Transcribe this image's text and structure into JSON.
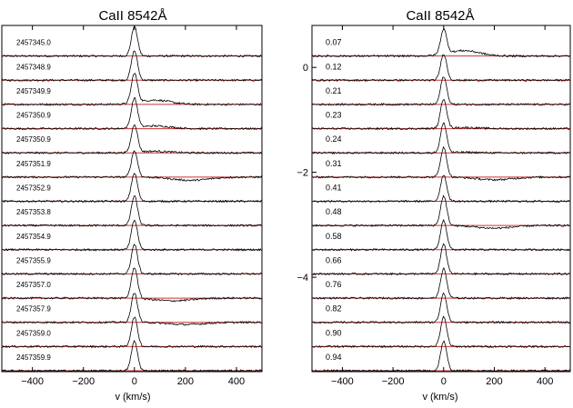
{
  "chart_data": [
    {
      "type": "line",
      "title": "CaII 8542Å",
      "xlabel": "v (km/s)",
      "ylabel": "",
      "xlim": [
        -520,
        500
      ],
      "xticks": [
        -400,
        -200,
        0,
        200,
        400
      ],
      "yticks": [],
      "grid": false,
      "legend": "none",
      "reference_line_color": "#cc3333",
      "spectrum_color": "#000000",
      "series": [
        {
          "label": "2457345.0",
          "peak": 0.95,
          "bump": 0.0,
          "absorb": 0.0,
          "absorb_center": 0
        },
        {
          "label": "2457348.9",
          "peak": 0.95,
          "bump": 0.0,
          "absorb": 0.0,
          "absorb_center": 0
        },
        {
          "label": "2457349.9",
          "peak": 0.95,
          "bump": 0.4,
          "absorb": 0.0,
          "absorb_center": 0
        },
        {
          "label": "2457350.9",
          "peak": 0.95,
          "bump": 0.25,
          "absorb": 0.0,
          "absorb_center": 0
        },
        {
          "label": "2457350.9",
          "peak": 0.9,
          "bump": 0.15,
          "absorb": 0.0,
          "absorb_center": 0
        },
        {
          "label": "2457351.9",
          "peak": 0.85,
          "bump": 0.0,
          "absorb": 0.3,
          "absorb_center": 220
        },
        {
          "label": "2457352.9",
          "peak": 0.9,
          "bump": 0.0,
          "absorb": 0.0,
          "absorb_center": 0
        },
        {
          "label": "2457353.8",
          "peak": 0.95,
          "bump": 0.0,
          "absorb": 0.0,
          "absorb_center": 0
        },
        {
          "label": "2457354.9",
          "peak": 0.95,
          "bump": 0.0,
          "absorb": 0.0,
          "absorb_center": 0
        },
        {
          "label": "2457355.9",
          "peak": 0.95,
          "bump": 0.0,
          "absorb": 0.0,
          "absorb_center": 0
        },
        {
          "label": "2457357.0",
          "peak": 1.0,
          "bump": 0.0,
          "absorb": 0.25,
          "absorb_center": 150
        },
        {
          "label": "2457357.9",
          "peak": 0.95,
          "bump": 0.0,
          "absorb": 0.2,
          "absorb_center": 200
        },
        {
          "label": "2457359.0",
          "peak": 0.95,
          "bump": 0.0,
          "absorb": 0.0,
          "absorb_center": 0
        },
        {
          "label": "2457359.9",
          "peak": 0.95,
          "bump": 0.0,
          "absorb": 0.0,
          "absorb_center": 0
        }
      ]
    },
    {
      "type": "line",
      "title": "CaII 8542Å",
      "xlabel": "v (km/s)",
      "ylabel": "",
      "xlim": [
        -520,
        500
      ],
      "ylim": [
        -5.8,
        0.8
      ],
      "xticks": [
        -400,
        -200,
        0,
        200,
        400
      ],
      "yticks": [
        0,
        -2,
        -4
      ],
      "grid": false,
      "legend": "none",
      "reference_line_color": "#cc3333",
      "spectrum_color": "#000000",
      "series": [
        {
          "label": "0.07",
          "peak": 0.8,
          "bump": 0.5,
          "absorb": 0.0,
          "absorb_center": 0
        },
        {
          "label": "0.12",
          "peak": 0.85,
          "bump": 0.0,
          "absorb": 0.0,
          "absorb_center": 0
        },
        {
          "label": "0.21",
          "peak": 0.9,
          "bump": 0.0,
          "absorb": 0.0,
          "absorb_center": 0
        },
        {
          "label": "0.23",
          "peak": 0.95,
          "bump": 0.1,
          "absorb": 0.0,
          "absorb_center": 0
        },
        {
          "label": "0.24",
          "peak": 0.95,
          "bump": 0.05,
          "absorb": 0.0,
          "absorb_center": 0
        },
        {
          "label": "0.31",
          "peak": 0.95,
          "bump": 0.0,
          "absorb": 0.25,
          "absorb_center": 200
        },
        {
          "label": "0.41",
          "peak": 0.85,
          "bump": 0.0,
          "absorb": 0.0,
          "absorb_center": 0
        },
        {
          "label": "0.48",
          "peak": 0.95,
          "bump": 0.0,
          "absorb": 0.25,
          "absorb_center": 200
        },
        {
          "label": "0.58",
          "peak": 0.95,
          "bump": 0.0,
          "absorb": 0.0,
          "absorb_center": 0
        },
        {
          "label": "0.66",
          "peak": 0.95,
          "bump": 0.0,
          "absorb": 0.0,
          "absorb_center": 0
        },
        {
          "label": "0.76",
          "peak": 0.95,
          "bump": 0.0,
          "absorb": 0.0,
          "absorb_center": 0
        },
        {
          "label": "0.82",
          "peak": 0.95,
          "bump": 0.0,
          "absorb": 0.0,
          "absorb_center": 0
        },
        {
          "label": "0.90",
          "peak": 0.95,
          "bump": 0.0,
          "absorb": 0.0,
          "absorb_center": 0
        },
        {
          "label": "0.94",
          "peak": 0.95,
          "bump": 0.0,
          "absorb": 0.0,
          "absorb_center": 0
        }
      ]
    }
  ]
}
